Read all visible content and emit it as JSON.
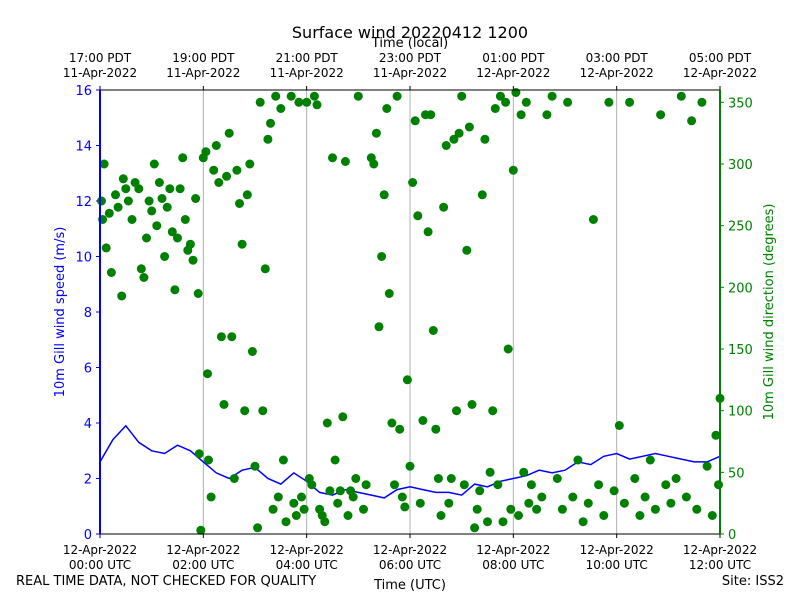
{
  "colors": {
    "speed": "#0000ff",
    "direction": "#008000",
    "grid": "#b0b0b0",
    "axis": "#000000"
  },
  "footer": {
    "left_note": "REAL TIME DATA, NOT CHECKED FOR QUALITY",
    "site": "Site: ISS2"
  },
  "chart_data": {
    "type": "scatter",
    "title": "Surface wind 20220412 1200",
    "xlabel": "Time (UTC)",
    "top_xlabel": "Time (local)",
    "ylabel": "10m Gill wind speed (m/s)",
    "y2label": "10m Gill wind direction (degrees)",
    "xlim_hours_utc": [
      0,
      12
    ],
    "ylim": [
      0,
      16
    ],
    "y2lim": [
      0,
      360
    ],
    "x_ticks_utc": [
      {
        "h": 0,
        "line1": "12-Apr-2022",
        "line2": "00:00 UTC"
      },
      {
        "h": 2,
        "line1": "12-Apr-2022",
        "line2": "02:00 UTC"
      },
      {
        "h": 4,
        "line1": "12-Apr-2022",
        "line2": "04:00 UTC"
      },
      {
        "h": 6,
        "line1": "12-Apr-2022",
        "line2": "06:00 UTC"
      },
      {
        "h": 8,
        "line1": "12-Apr-2022",
        "line2": "08:00 UTC"
      },
      {
        "h": 10,
        "line1": "12-Apr-2022",
        "line2": "10:00 UTC"
      },
      {
        "h": 12,
        "line1": "12-Apr-2022",
        "line2": "12:00 UTC"
      }
    ],
    "x_ticks_local": [
      {
        "h": 0,
        "line1": "17:00 PDT",
        "line2": "11-Apr-2022"
      },
      {
        "h": 2,
        "line1": "19:00 PDT",
        "line2": "11-Apr-2022"
      },
      {
        "h": 4,
        "line1": "21:00 PDT",
        "line2": "11-Apr-2022"
      },
      {
        "h": 6,
        "line1": "23:00 PDT",
        "line2": "11-Apr-2022"
      },
      {
        "h": 8,
        "line1": "01:00 PDT",
        "line2": "12-Apr-2022"
      },
      {
        "h": 10,
        "line1": "03:00 PDT",
        "line2": "12-Apr-2022"
      },
      {
        "h": 12,
        "line1": "05:00 PDT",
        "line2": "12-Apr-2022"
      }
    ],
    "y_ticks": [
      0,
      2,
      4,
      6,
      8,
      10,
      12,
      14,
      16
    ],
    "y2_ticks": [
      0,
      50,
      100,
      150,
      200,
      250,
      300,
      350
    ],
    "series": [
      {
        "name": "10m Gill wind speed (m/s)",
        "type": "line",
        "axis": "left",
        "x_hours": [
          0,
          0.25,
          0.5,
          0.75,
          1,
          1.25,
          1.5,
          1.75,
          2,
          2.25,
          2.5,
          2.75,
          3,
          3.25,
          3.5,
          3.75,
          4,
          4.25,
          4.5,
          4.75,
          5,
          5.25,
          5.5,
          5.75,
          6,
          6.25,
          6.5,
          6.75,
          7,
          7.25,
          7.5,
          7.75,
          8,
          8.25,
          8.5,
          8.75,
          9,
          9.25,
          9.5,
          9.75,
          10,
          10.25,
          10.5,
          10.75,
          11,
          11.25,
          11.5,
          11.75,
          12
        ],
        "values": [
          2.6,
          3.4,
          3.9,
          3.3,
          3.0,
          2.9,
          3.2,
          3.0,
          2.6,
          2.2,
          2.0,
          2.3,
          2.4,
          2.0,
          1.8,
          2.2,
          1.9,
          1.5,
          1.4,
          1.6,
          1.5,
          1.4,
          1.3,
          1.6,
          1.7,
          1.6,
          1.5,
          1.5,
          1.4,
          1.8,
          1.7,
          1.9,
          2.0,
          2.1,
          2.3,
          2.2,
          2.3,
          2.6,
          2.5,
          2.8,
          2.9,
          2.7,
          2.8,
          2.9,
          2.8,
          2.7,
          2.6,
          2.6,
          2.8
        ]
      },
      {
        "name": "10m Gill wind direction (degrees)",
        "type": "scatter",
        "axis": "right",
        "points": [
          [
            0.03,
            270
          ],
          [
            0.05,
            255
          ],
          [
            0.08,
            300
          ],
          [
            0.12,
            232
          ],
          [
            0.18,
            260
          ],
          [
            0.22,
            212
          ],
          [
            0.3,
            275
          ],
          [
            0.35,
            265
          ],
          [
            0.42,
            193
          ],
          [
            0.45,
            288
          ],
          [
            0.5,
            280
          ],
          [
            0.55,
            270
          ],
          [
            0.62,
            255
          ],
          [
            0.68,
            285
          ],
          [
            0.75,
            280
          ],
          [
            0.8,
            215
          ],
          [
            0.85,
            208
          ],
          [
            0.9,
            240
          ],
          [
            0.95,
            270
          ],
          [
            1.0,
            262
          ],
          [
            1.05,
            300
          ],
          [
            1.1,
            250
          ],
          [
            1.15,
            285
          ],
          [
            1.2,
            272
          ],
          [
            1.25,
            225
          ],
          [
            1.3,
            265
          ],
          [
            1.35,
            280
          ],
          [
            1.4,
            245
          ],
          [
            1.45,
            198
          ],
          [
            1.5,
            240
          ],
          [
            1.55,
            280
          ],
          [
            1.6,
            305
          ],
          [
            1.65,
            255
          ],
          [
            1.7,
            230
          ],
          [
            1.75,
            235
          ],
          [
            1.8,
            222
          ],
          [
            1.85,
            272
          ],
          [
            1.9,
            195
          ],
          [
            1.92,
            65
          ],
          [
            1.95,
            3
          ],
          [
            2.0,
            305
          ],
          [
            2.05,
            310
          ],
          [
            2.08,
            130
          ],
          [
            2.1,
            60
          ],
          [
            2.15,
            30
          ],
          [
            2.2,
            295
          ],
          [
            2.25,
            315
          ],
          [
            2.3,
            285
          ],
          [
            2.35,
            160
          ],
          [
            2.4,
            105
          ],
          [
            2.45,
            290
          ],
          [
            2.5,
            325
          ],
          [
            2.55,
            160
          ],
          [
            2.6,
            45
          ],
          [
            2.65,
            295
          ],
          [
            2.7,
            268
          ],
          [
            2.75,
            235
          ],
          [
            2.8,
            100
          ],
          [
            2.85,
            275
          ],
          [
            2.9,
            300
          ],
          [
            2.95,
            148
          ],
          [
            3.0,
            55
          ],
          [
            3.05,
            5
          ],
          [
            3.1,
            350
          ],
          [
            3.15,
            100
          ],
          [
            3.2,
            215
          ],
          [
            3.25,
            320
          ],
          [
            3.3,
            333
          ],
          [
            3.35,
            20
          ],
          [
            3.4,
            355
          ],
          [
            3.45,
            30
          ],
          [
            3.5,
            345
          ],
          [
            3.55,
            60
          ],
          [
            3.6,
            10
          ],
          [
            3.7,
            355
          ],
          [
            3.75,
            25
          ],
          [
            3.8,
            15
          ],
          [
            3.85,
            350
          ],
          [
            3.9,
            30
          ],
          [
            3.95,
            20
          ],
          [
            4.0,
            350
          ],
          [
            4.05,
            45
          ],
          [
            4.1,
            40
          ],
          [
            4.15,
            355
          ],
          [
            4.2,
            348
          ],
          [
            4.25,
            20
          ],
          [
            4.3,
            15
          ],
          [
            4.35,
            10
          ],
          [
            4.4,
            90
          ],
          [
            4.45,
            35
          ],
          [
            4.5,
            305
          ],
          [
            4.55,
            60
          ],
          [
            4.6,
            25
          ],
          [
            4.65,
            35
          ],
          [
            4.7,
            95
          ],
          [
            4.75,
            302
          ],
          [
            4.8,
            15
          ],
          [
            4.85,
            35
          ],
          [
            4.9,
            30
          ],
          [
            4.95,
            45
          ],
          [
            5.0,
            355
          ],
          [
            5.1,
            20
          ],
          [
            5.15,
            40
          ],
          [
            5.25,
            305
          ],
          [
            5.3,
            300
          ],
          [
            5.35,
            325
          ],
          [
            5.4,
            168
          ],
          [
            5.45,
            225
          ],
          [
            5.5,
            275
          ],
          [
            5.55,
            345
          ],
          [
            5.6,
            195
          ],
          [
            5.65,
            90
          ],
          [
            5.7,
            40
          ],
          [
            5.75,
            355
          ],
          [
            5.8,
            85
          ],
          [
            5.85,
            30
          ],
          [
            5.9,
            22
          ],
          [
            5.95,
            125
          ],
          [
            6.0,
            55
          ],
          [
            6.05,
            285
          ],
          [
            6.1,
            335
          ],
          [
            6.15,
            258
          ],
          [
            6.2,
            25
          ],
          [
            6.25,
            92
          ],
          [
            6.3,
            340
          ],
          [
            6.35,
            245
          ],
          [
            6.4,
            340
          ],
          [
            6.45,
            165
          ],
          [
            6.5,
            85
          ],
          [
            6.55,
            45
          ],
          [
            6.6,
            15
          ],
          [
            6.65,
            265
          ],
          [
            6.7,
            315
          ],
          [
            6.75,
            25
          ],
          [
            6.8,
            45
          ],
          [
            6.85,
            320
          ],
          [
            6.9,
            100
          ],
          [
            6.95,
            325
          ],
          [
            7.0,
            355
          ],
          [
            7.05,
            40
          ],
          [
            7.1,
            230
          ],
          [
            7.15,
            330
          ],
          [
            7.2,
            105
          ],
          [
            7.25,
            5
          ],
          [
            7.3,
            20
          ],
          [
            7.35,
            35
          ],
          [
            7.4,
            275
          ],
          [
            7.45,
            320
          ],
          [
            7.5,
            10
          ],
          [
            7.55,
            50
          ],
          [
            7.6,
            100
          ],
          [
            7.65,
            345
          ],
          [
            7.7,
            40
          ],
          [
            7.75,
            355
          ],
          [
            7.8,
            10
          ],
          [
            7.85,
            350
          ],
          [
            7.9,
            150
          ],
          [
            7.95,
            20
          ],
          [
            8.0,
            295
          ],
          [
            8.05,
            358
          ],
          [
            8.1,
            15
          ],
          [
            8.15,
            340
          ],
          [
            8.2,
            50
          ],
          [
            8.25,
            350
          ],
          [
            8.3,
            25
          ],
          [
            8.35,
            40
          ],
          [
            8.45,
            20
          ],
          [
            8.55,
            30
          ],
          [
            8.65,
            340
          ],
          [
            8.75,
            355
          ],
          [
            8.85,
            45
          ],
          [
            8.95,
            20
          ],
          [
            9.05,
            350
          ],
          [
            9.15,
            30
          ],
          [
            9.25,
            60
          ],
          [
            9.35,
            10
          ],
          [
            9.45,
            25
          ],
          [
            9.55,
            255
          ],
          [
            9.65,
            40
          ],
          [
            9.75,
            15
          ],
          [
            9.85,
            350
          ],
          [
            9.95,
            35
          ],
          [
            10.05,
            88
          ],
          [
            10.15,
            25
          ],
          [
            10.25,
            350
          ],
          [
            10.35,
            45
          ],
          [
            10.45,
            15
          ],
          [
            10.55,
            30
          ],
          [
            10.65,
            60
          ],
          [
            10.75,
            20
          ],
          [
            10.85,
            340
          ],
          [
            10.95,
            40
          ],
          [
            11.05,
            25
          ],
          [
            11.15,
            45
          ],
          [
            11.25,
            355
          ],
          [
            11.35,
            30
          ],
          [
            11.45,
            335
          ],
          [
            11.55,
            20
          ],
          [
            11.65,
            350
          ],
          [
            11.75,
            55
          ],
          [
            11.85,
            15
          ],
          [
            11.92,
            80
          ],
          [
            11.97,
            40
          ],
          [
            12.0,
            110
          ]
        ]
      }
    ]
  }
}
